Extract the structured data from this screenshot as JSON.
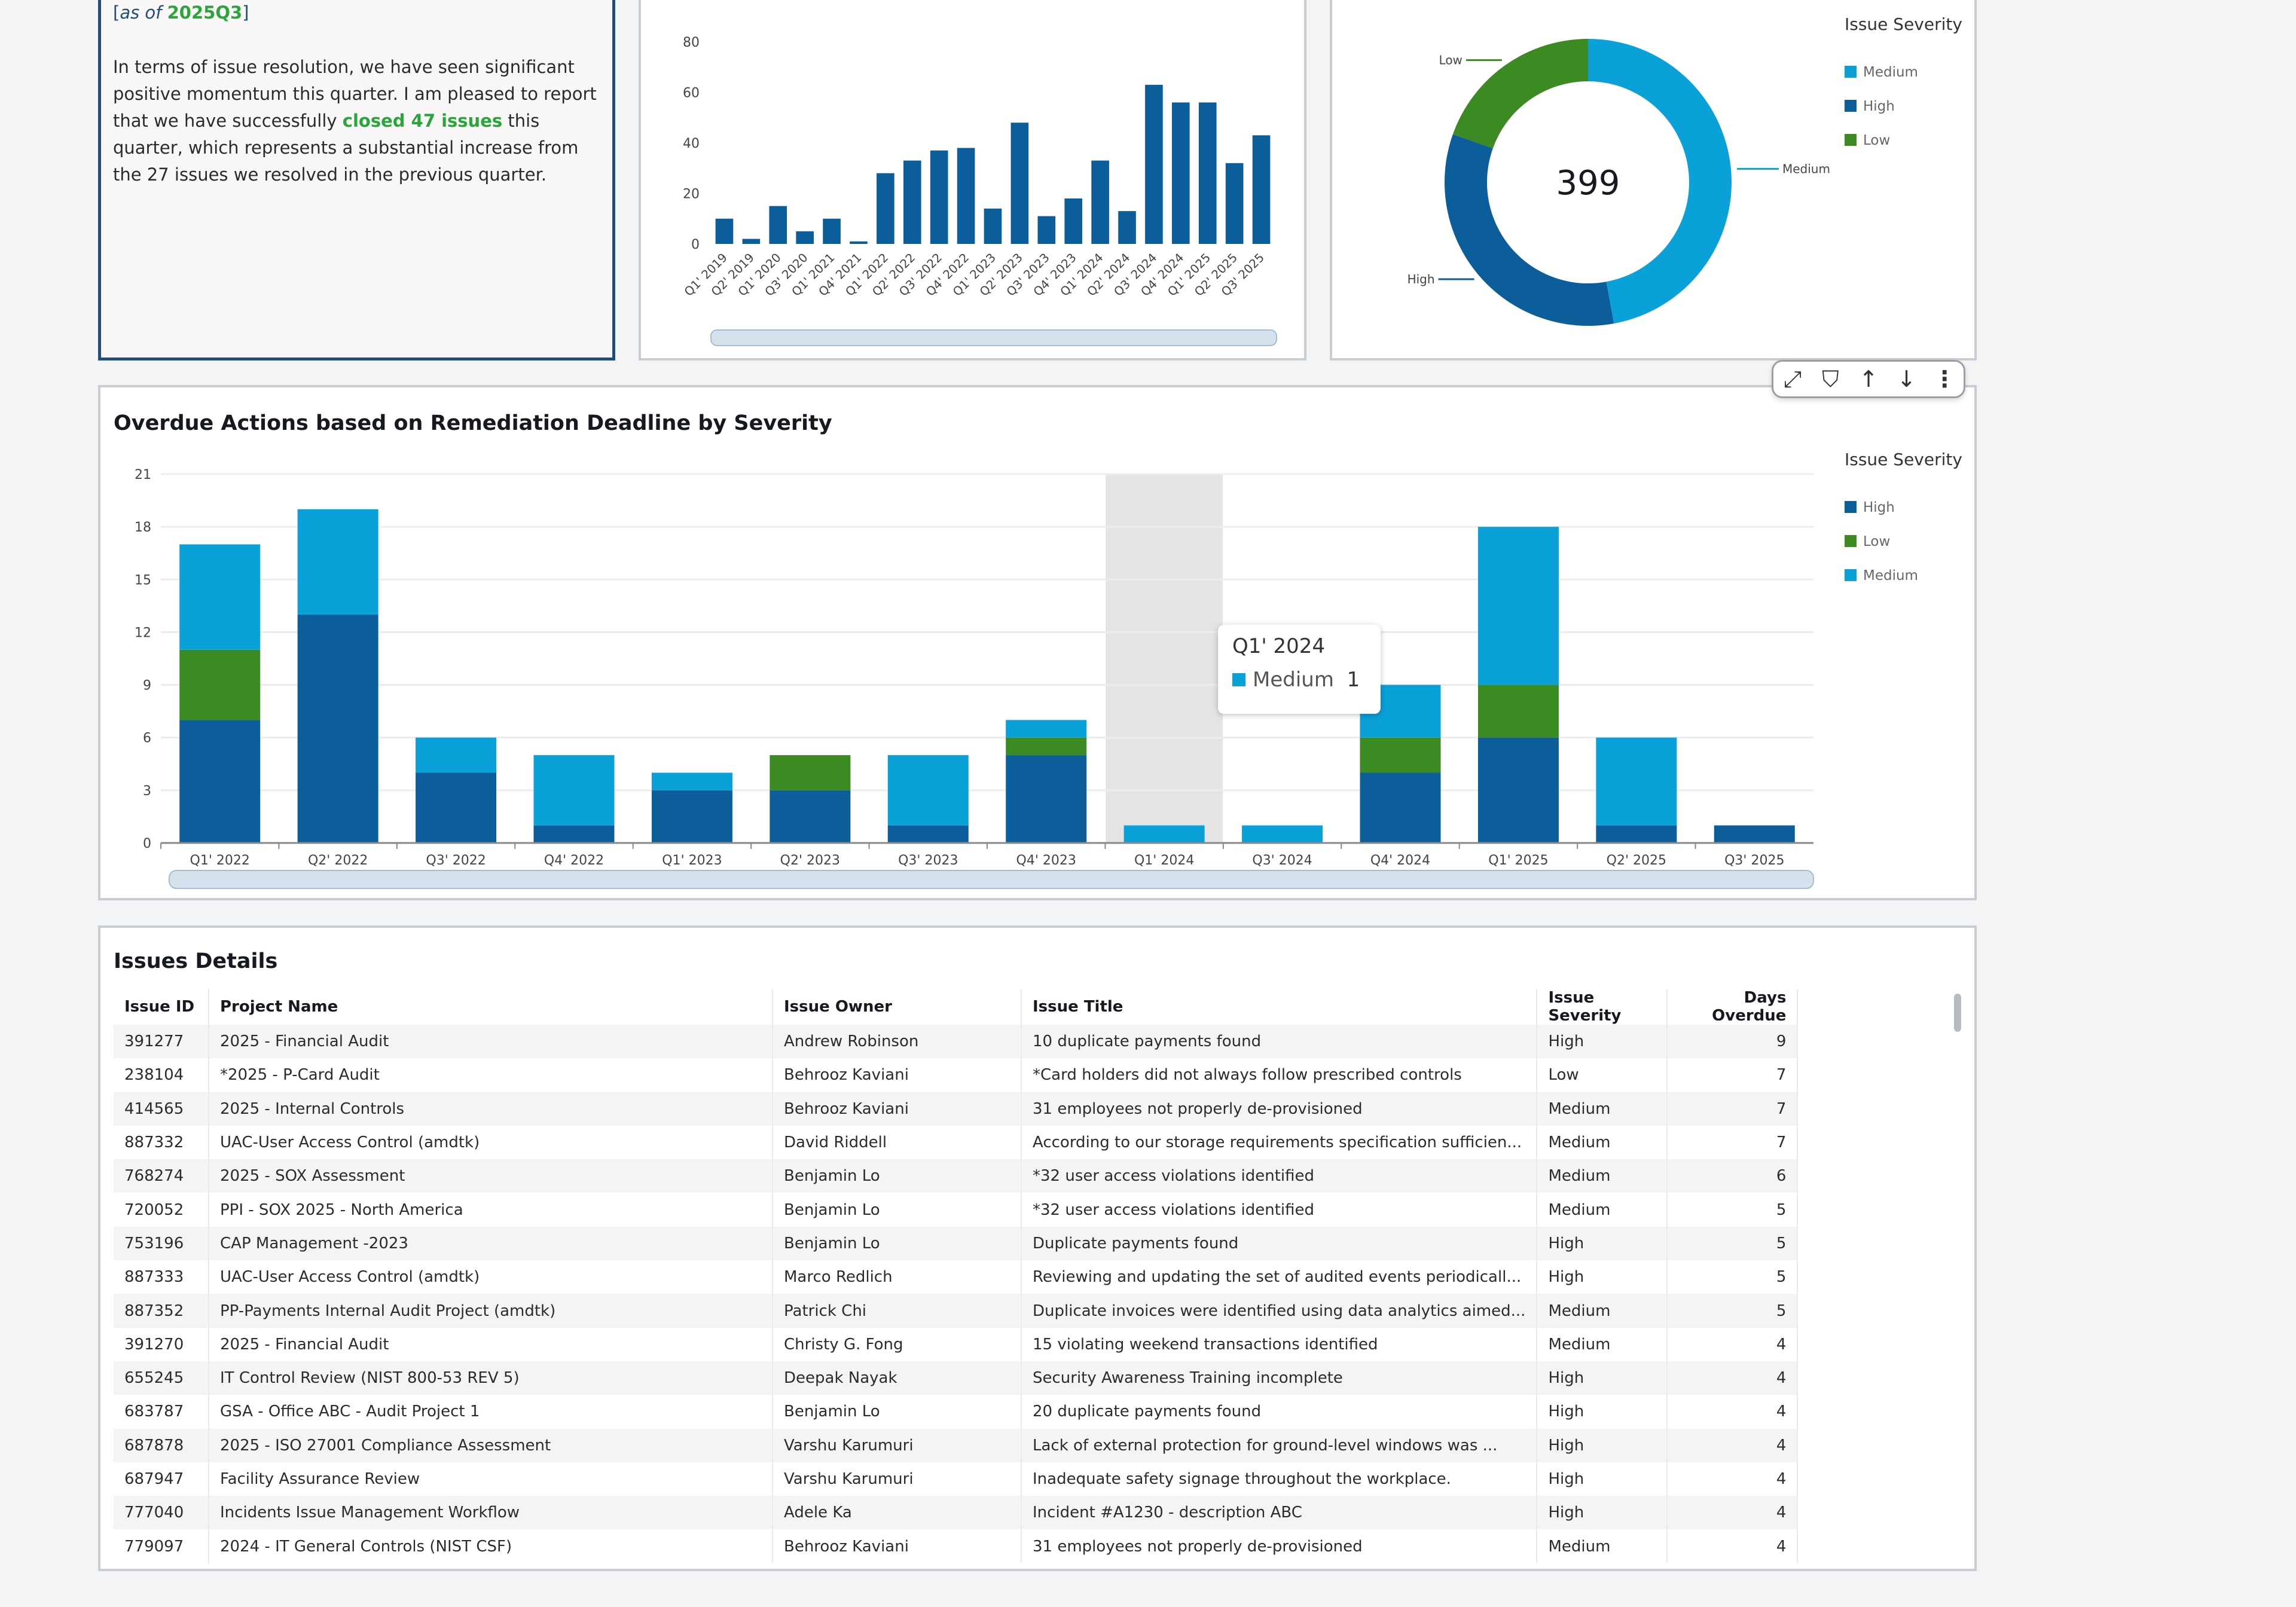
{
  "summary": {
    "bracket_open": "[",
    "as_of": "as of ",
    "period": "2025Q3",
    "bracket_close": "]",
    "p1": "In terms of issue resolution, we have seen significant positive momentum this quarter.  I am pleased to report that we have successfully ",
    "highlight": "closed 47 issues",
    "p2": " this quarter, which represents a substantial increase from the 27 issues we resolved in the previous quarter."
  },
  "colors": {
    "High": "#0b5e9a",
    "Medium": "#0aa0d8",
    "Low": "#3b8a22",
    "bar": "#0b5e9a"
  },
  "toolbar": {
    "icons": [
      "expand-icon",
      "filter-icon",
      "sort-ascending-icon",
      "sort-descending-icon",
      "more-options-icon"
    ]
  },
  "chart_data": [
    {
      "type": "bar",
      "title": "",
      "categories": [
        "Q1' 2019",
        "Q2' 2019",
        "Q1' 2020",
        "Q3' 2020",
        "Q1' 2021",
        "Q4' 2021",
        "Q1' 2022",
        "Q2' 2022",
        "Q3' 2022",
        "Q4' 2022",
        "Q1' 2023",
        "Q2' 2023",
        "Q3' 2023",
        "Q4' 2023",
        "Q1' 2024",
        "Q2' 2024",
        "Q3' 2024",
        "Q4' 2024",
        "Q1' 2025",
        "Q2' 2025",
        "Q3' 2025"
      ],
      "values": [
        10,
        2,
        15,
        5,
        10,
        1,
        28,
        33,
        37,
        38,
        14,
        48,
        11,
        18,
        33,
        13,
        63,
        56,
        56,
        32,
        43
      ],
      "yticks": [
        0,
        20,
        40,
        60,
        80
      ],
      "ylim": [
        0,
        80
      ],
      "grid": false
    },
    {
      "type": "pie",
      "donut": true,
      "center_label": "399",
      "legend_title": "Issue Severity",
      "legend": [
        "Medium",
        "High",
        "Low"
      ],
      "legend_position": "right",
      "slices": [
        {
          "name": "Medium",
          "value": 188
        },
        {
          "name": "High",
          "value": 133
        },
        {
          "name": "Low",
          "value": 78
        }
      ]
    },
    {
      "type": "bar",
      "stacked": true,
      "title": "Overdue Actions based on Remediation Deadline by Severity",
      "legend_title": "Issue Severity",
      "legend_position": "right",
      "categories": [
        "Q1' 2022",
        "Q2' 2022",
        "Q3' 2022",
        "Q4' 2022",
        "Q1' 2023",
        "Q2' 2023",
        "Q3' 2023",
        "Q4' 2023",
        "Q1' 2024",
        "Q3' 2024",
        "Q4' 2024",
        "Q1' 2025",
        "Q2' 2025",
        "Q3' 2025"
      ],
      "series": [
        {
          "name": "High",
          "values": [
            7,
            13,
            4,
            1,
            3,
            3,
            1,
            5,
            0,
            0,
            4,
            6,
            1,
            1
          ]
        },
        {
          "name": "Low",
          "values": [
            4,
            0,
            0,
            0,
            0,
            2,
            0,
            1,
            0,
            0,
            2,
            3,
            0,
            0
          ]
        },
        {
          "name": "Medium",
          "values": [
            6,
            6,
            2,
            4,
            1,
            0,
            4,
            1,
            1,
            1,
            3,
            9,
            5,
            0
          ]
        }
      ],
      "yticks": [
        0,
        3,
        6,
        9,
        12,
        15,
        18,
        21
      ],
      "ylim": [
        0,
        21
      ],
      "grid": true,
      "highlighted_category": "Q1' 2024",
      "tooltip": {
        "title": "Q1' 2024",
        "series": "Medium",
        "value": "1"
      }
    }
  ],
  "table": {
    "title": "Issues Details",
    "columns": [
      "Issue ID",
      "Project Name",
      "Issue Owner",
      "Issue Title",
      "Issue Severity",
      "Days Overdue"
    ],
    "rows": [
      [
        "391277",
        "2025 - Financial Audit",
        "Andrew Robinson",
        "10 duplicate payments found",
        "High",
        "9"
      ],
      [
        "238104",
        "*2025 - P-Card Audit",
        "Behrooz Kaviani",
        "*Card holders did not always follow prescribed controls",
        "Low",
        "7"
      ],
      [
        "414565",
        "2025 - Internal Controls",
        "Behrooz Kaviani",
        "31 employees not properly de-provisioned",
        "Medium",
        "7"
      ],
      [
        "887332",
        "UAC-User Access Control (amdtk)",
        "David Riddell",
        "According to our storage requirements specification sufficien...",
        "Medium",
        "7"
      ],
      [
        "768274",
        "2025 - SOX Assessment",
        "Benjamin Lo",
        "*32 user access violations identified",
        "Medium",
        "6"
      ],
      [
        "720052",
        "PPI - SOX 2025 - North America",
        "Benjamin Lo",
        "*32 user access violations identified",
        "Medium",
        "5"
      ],
      [
        "753196",
        "CAP Management -2023",
        "Benjamin Lo",
        "Duplicate payments found",
        "High",
        "5"
      ],
      [
        "887333",
        "UAC-User Access Control (amdtk)",
        "Marco Redlich",
        "Reviewing and updating the set of audited events periodicall...",
        "High",
        "5"
      ],
      [
        "887352",
        "PP-Payments Internal Audit Project (amdtk)",
        "Patrick Chi",
        "Duplicate invoices were identified using data analytics aimed...",
        "Medium",
        "5"
      ],
      [
        "391270",
        "2025 - Financial Audit",
        "Christy G. Fong",
        "15 violating weekend transactions identified",
        "Medium",
        "4"
      ],
      [
        "655245",
        "IT Control Review (NIST 800-53 REV 5)",
        "Deepak Nayak",
        "Security Awareness Training incomplete",
        "High",
        "4"
      ],
      [
        "683787",
        "GSA - Office ABC - Audit Project 1",
        "Benjamin Lo",
        "20 duplicate payments found",
        "High",
        "4"
      ],
      [
        "687878",
        "2025 - ISO 27001 Compliance Assessment",
        "Varshu Karumuri",
        "Lack of external protection for ground-level windows was ...",
        "High",
        "4"
      ],
      [
        "687947",
        "Facility Assurance Review",
        "Varshu Karumuri",
        "Inadequate safety signage throughout the workplace.",
        "High",
        "4"
      ],
      [
        "777040",
        "Incidents Issue Management Workflow",
        "Adele Ka",
        "Incident #A1230 - description ABC",
        "High",
        "4"
      ],
      [
        "779097",
        "2024 - IT General Controls (NIST CSF)",
        "Behrooz Kaviani",
        "31 employees not properly de-provisioned",
        "Medium",
        "4"
      ]
    ]
  }
}
